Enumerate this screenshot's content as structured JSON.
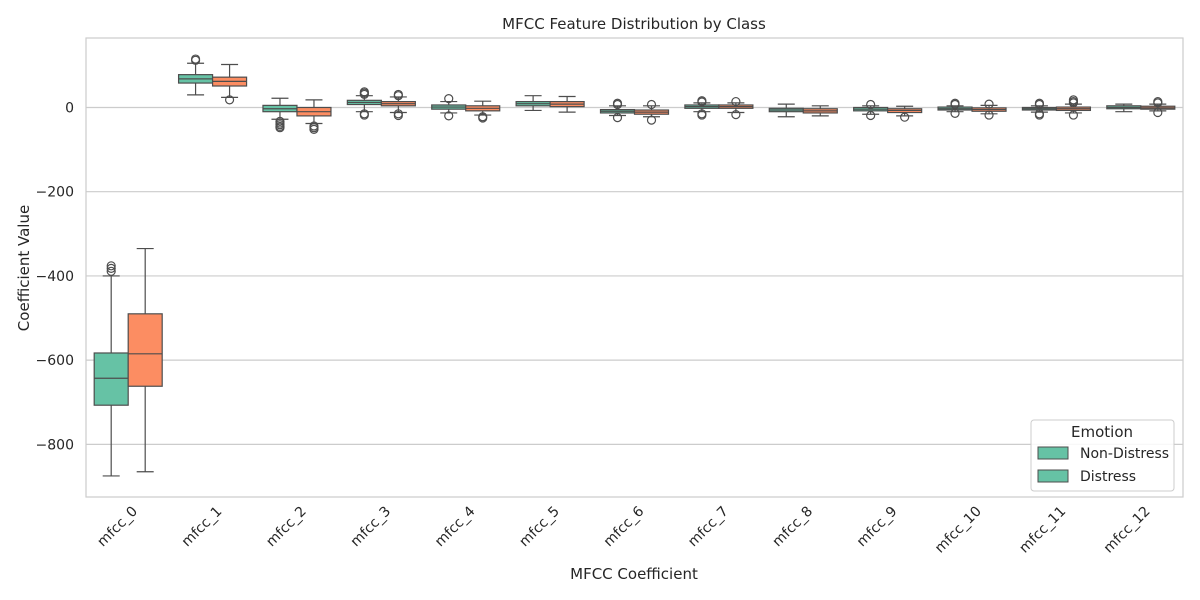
{
  "chart_data": {
    "type": "box",
    "title": "MFCC Feature Distribution by Class",
    "xlabel": "MFCC Coefficient",
    "ylabel": "Coefficient Value",
    "ylim": [
      -925,
      165
    ],
    "yticks": [
      0,
      -200,
      -400,
      -600,
      -800
    ],
    "grid": "horizontal",
    "categories": [
      "mfcc_0",
      "mfcc_1",
      "mfcc_2",
      "mfcc_3",
      "mfcc_4",
      "mfcc_5",
      "mfcc_6",
      "mfcc_7",
      "mfcc_8",
      "mfcc_9",
      "mfcc_10",
      "mfcc_11",
      "mfcc_12"
    ],
    "legend": {
      "title": "Emotion",
      "position": "lower-right",
      "entries": [
        "Non-Distress",
        "Distress"
      ]
    },
    "colors": {
      "Non-Distress": "#66c2a5",
      "Distress": "#fc8d62",
      "legend_Distress": "#66c2a5",
      "line": "#4d4d4d",
      "grid": "#cccccc"
    },
    "series": [
      {
        "name": "Non-Distress",
        "boxes": [
          {
            "whisker_low": -875,
            "q1": -707,
            "median": -643,
            "q3": -583,
            "whisker_high": -400,
            "outliers": [
              -376,
              -382,
              -389
            ]
          },
          {
            "whisker_low": 30,
            "q1": 58,
            "median": 68,
            "q3": 78,
            "whisker_high": 105,
            "outliers": [
              112,
              115
            ]
          },
          {
            "whisker_low": -28,
            "q1": -10,
            "median": -3,
            "q3": 5,
            "whisker_high": 22,
            "outliers": [
              -33,
              -37,
              -41,
              -45,
              -48
            ]
          },
          {
            "whisker_low": -10,
            "q1": 7,
            "median": 12,
            "q3": 17,
            "whisker_high": 28,
            "outliers": [
              -15,
              -18,
              31,
              34,
              37
            ]
          },
          {
            "whisker_low": -13,
            "q1": -4,
            "median": 1,
            "q3": 6,
            "whisker_high": 14,
            "outliers": [
              -20,
              21
            ]
          },
          {
            "whisker_low": -7,
            "q1": 4,
            "median": 9,
            "q3": 14,
            "whisker_high": 28,
            "outliers": []
          },
          {
            "whisker_low": -19,
            "q1": -13,
            "median": -9,
            "q3": -5,
            "whisker_high": 4,
            "outliers": [
              -24,
              7,
              10
            ]
          },
          {
            "whisker_low": -10,
            "q1": -2,
            "median": 2,
            "q3": 6,
            "whisker_high": 11,
            "outliers": [
              -15,
              -18,
              13,
              16
            ]
          },
          {
            "whisker_low": -22,
            "q1": -10,
            "median": -6,
            "q3": -2,
            "whisker_high": 8,
            "outliers": []
          },
          {
            "whisker_low": -16,
            "q1": -8,
            "median": -4,
            "q3": 0,
            "whisker_high": 4,
            "outliers": [
              -19,
              7
            ]
          },
          {
            "whisker_low": -10,
            "q1": -6,
            "median": -3,
            "q3": 1,
            "whisker_high": 4,
            "outliers": [
              -14,
              7,
              10
            ]
          },
          {
            "whisker_low": -11,
            "q1": -6,
            "median": -3,
            "q3": 0,
            "whisker_high": 4,
            "outliers": [
              -15,
              -18,
              7,
              10
            ]
          },
          {
            "whisker_low": -10,
            "q1": -3,
            "median": 0,
            "q3": 4,
            "whisker_high": 8,
            "outliers": []
          }
        ]
      },
      {
        "name": "Distress",
        "boxes": [
          {
            "whisker_low": -865,
            "q1": -662,
            "median": -585,
            "q3": -490,
            "whisker_high": -335,
            "outliers": []
          },
          {
            "whisker_low": 24,
            "q1": 51,
            "median": 62,
            "q3": 72,
            "whisker_high": 102,
            "outliers": [
              18
            ]
          },
          {
            "whisker_low": -38,
            "q1": -20,
            "median": -10,
            "q3": 0,
            "whisker_high": 18,
            "outliers": [
              -44,
              -48,
              -52
            ]
          },
          {
            "whisker_low": -12,
            "q1": 4,
            "median": 9,
            "q3": 14,
            "whisker_high": 25,
            "outliers": [
              -15,
              -19,
              28,
              31
            ]
          },
          {
            "whisker_low": -18,
            "q1": -8,
            "median": -2,
            "q3": 4,
            "whisker_high": 15,
            "outliers": [
              -22,
              -25
            ]
          },
          {
            "whisker_low": -11,
            "q1": 2,
            "median": 8,
            "q3": 14,
            "whisker_high": 26,
            "outliers": []
          },
          {
            "whisker_low": -22,
            "q1": -16,
            "median": -11,
            "q3": -6,
            "whisker_high": 4,
            "outliers": [
              -30,
              7
            ]
          },
          {
            "whisker_low": -12,
            "q1": -2,
            "median": 2,
            "q3": 6,
            "whisker_high": 11,
            "outliers": [
              -17,
              14
            ]
          },
          {
            "whisker_low": -20,
            "q1": -13,
            "median": -8,
            "q3": -3,
            "whisker_high": 4,
            "outliers": []
          },
          {
            "whisker_low": -20,
            "q1": -12,
            "median": -7,
            "q3": -3,
            "whisker_high": 3,
            "outliers": [
              -23
            ]
          },
          {
            "whisker_low": -15,
            "q1": -9,
            "median": -5,
            "q3": -1,
            "whisker_high": 5,
            "outliers": [
              -18,
              8
            ]
          },
          {
            "whisker_low": -13,
            "q1": -7,
            "median": -3,
            "q3": 1,
            "whisker_high": 8,
            "outliers": [
              -18,
              11,
              14,
              18
            ]
          },
          {
            "whisker_low": -8,
            "q1": -4,
            "median": -1,
            "q3": 3,
            "whisker_high": 8,
            "outliers": [
              -12,
              11,
              14
            ]
          }
        ]
      }
    ]
  }
}
